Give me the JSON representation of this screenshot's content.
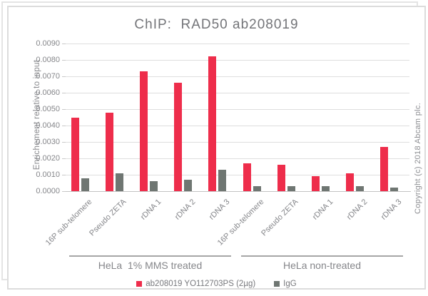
{
  "chart_data": {
    "type": "bar",
    "title": "ChIP:  RAD50 ab208019",
    "ylabel": "Enrichement relative to input",
    "xlabel": "",
    "ylim": [
      0,
      0.009
    ],
    "ytick_step": 0.001,
    "ytick_labels": [
      "0.0000",
      "0.0010",
      "0.0020",
      "0.0030",
      "0.0040",
      "0.0050",
      "0.0060",
      "0.0070",
      "0.0080",
      "0.0090"
    ],
    "grid": true,
    "legend_position": "bottom",
    "categories": [
      "16P sub-telomere",
      "Pseudo ZETA",
      "rDNA 1",
      "rDNA 2",
      "rDNA 3",
      "16P sub-telomere",
      "Pseudo ZETA",
      "rDNA 1",
      "rDNA 2",
      "rDNA 3"
    ],
    "groups": [
      {
        "label": "HeLa  1% MMS treated",
        "start": 0,
        "end": 5
      },
      {
        "label": "HeLa non-treated",
        "start": 5,
        "end": 10
      }
    ],
    "series": [
      {
        "name": "ab208019 YO112703PS (2µg)",
        "color": "#ee2d4b",
        "values": [
          0.0045,
          0.0048,
          0.0073,
          0.0066,
          0.0082,
          0.0017,
          0.0016,
          0.0009,
          0.0011,
          0.0027
        ]
      },
      {
        "name": "IgG",
        "color": "#6f7672",
        "values": [
          0.0008,
          0.0011,
          0.0006,
          0.0007,
          0.0013,
          0.0003,
          0.0003,
          0.0003,
          0.0003,
          0.0002
        ]
      }
    ]
  },
  "copyright_note": "Copyright (c) 2018 Abcam plc."
}
